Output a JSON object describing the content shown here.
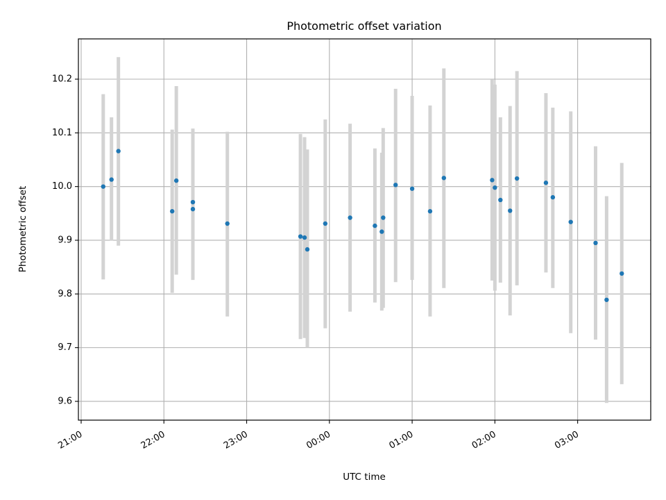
{
  "chart_data": {
    "type": "scatter",
    "title": "Photometric offset variation",
    "xlabel": "UTC time",
    "ylabel": "Photometric offset",
    "grid": true,
    "colors": {
      "point": "#1f77b4",
      "errorbar": "#d3d3d3",
      "grid": "#b0b0b0"
    },
    "x_ticks": [
      "21:00",
      "22:00",
      "23:00",
      "00:00",
      "01:00",
      "02:00",
      "03:00"
    ],
    "y_ticks": [
      "9.6",
      "9.7",
      "9.8",
      "9.9",
      "10.0",
      "10.1",
      "10.2"
    ],
    "xlim": [
      "20:58",
      "03:53"
    ],
    "ylim": [
      9.565,
      10.275
    ],
    "points": [
      {
        "t": "21:16",
        "y": 10.0,
        "low": 9.827,
        "high": 10.172
      },
      {
        "t": "21:22",
        "y": 10.013,
        "low": 9.899,
        "high": 10.129
      },
      {
        "t": "21:27",
        "y": 10.066,
        "low": 9.89,
        "high": 10.241
      },
      {
        "t": "22:06",
        "y": 9.954,
        "low": 9.802,
        "high": 10.106
      },
      {
        "t": "22:09",
        "y": 10.011,
        "low": 9.836,
        "high": 10.187
      },
      {
        "t": "22:21",
        "y": 9.971,
        "low": 9.826,
        "high": 10.108
      },
      {
        "t": "22:21",
        "y": 9.958,
        "low": 9.827,
        "high": 10.09
      },
      {
        "t": "22:46",
        "y": 9.931,
        "low": 9.758,
        "high": 10.102
      },
      {
        "t": "23:39",
        "y": 9.907,
        "low": 9.716,
        "high": 10.098
      },
      {
        "t": "23:42",
        "y": 9.905,
        "low": 9.718,
        "high": 10.092
      },
      {
        "t": "23:44",
        "y": 9.883,
        "low": 9.7,
        "high": 10.069
      },
      {
        "t": "23:57",
        "y": 9.931,
        "low": 9.736,
        "high": 10.125
      },
      {
        "t": "00:15",
        "y": 9.942,
        "low": 9.767,
        "high": 10.117
      },
      {
        "t": "00:33",
        "y": 9.927,
        "low": 9.784,
        "high": 10.071
      },
      {
        "t": "00:38",
        "y": 9.916,
        "low": 9.769,
        "high": 10.063
      },
      {
        "t": "00:39",
        "y": 9.942,
        "low": 9.774,
        "high": 10.109
      },
      {
        "t": "00:48",
        "y": 10.003,
        "low": 9.822,
        "high": 10.182
      },
      {
        "t": "01:00",
        "y": 9.996,
        "low": 9.826,
        "high": 10.169
      },
      {
        "t": "01:13",
        "y": 9.954,
        "low": 9.758,
        "high": 10.151
      },
      {
        "t": "01:23",
        "y": 10.016,
        "low": 9.811,
        "high": 10.22
      },
      {
        "t": "01:58",
        "y": 10.012,
        "low": 9.825,
        "high": 10.199
      },
      {
        "t": "02:00",
        "y": 9.998,
        "low": 9.806,
        "high": 10.19
      },
      {
        "t": "02:04",
        "y": 9.975,
        "low": 9.821,
        "high": 10.129
      },
      {
        "t": "02:11",
        "y": 9.955,
        "low": 9.76,
        "high": 10.15
      },
      {
        "t": "02:16",
        "y": 10.015,
        "low": 9.816,
        "high": 10.215
      },
      {
        "t": "02:37",
        "y": 10.007,
        "low": 9.84,
        "high": 10.174
      },
      {
        "t": "02:42",
        "y": 9.98,
        "low": 9.811,
        "high": 10.147
      },
      {
        "t": "02:55",
        "y": 9.934,
        "low": 9.727,
        "high": 10.14
      },
      {
        "t": "03:13",
        "y": 9.895,
        "low": 9.715,
        "high": 10.075
      },
      {
        "t": "03:21",
        "y": 9.789,
        "low": 9.597,
        "high": 9.982
      },
      {
        "t": "03:32",
        "y": 9.838,
        "low": 9.632,
        "high": 10.044
      }
    ]
  }
}
